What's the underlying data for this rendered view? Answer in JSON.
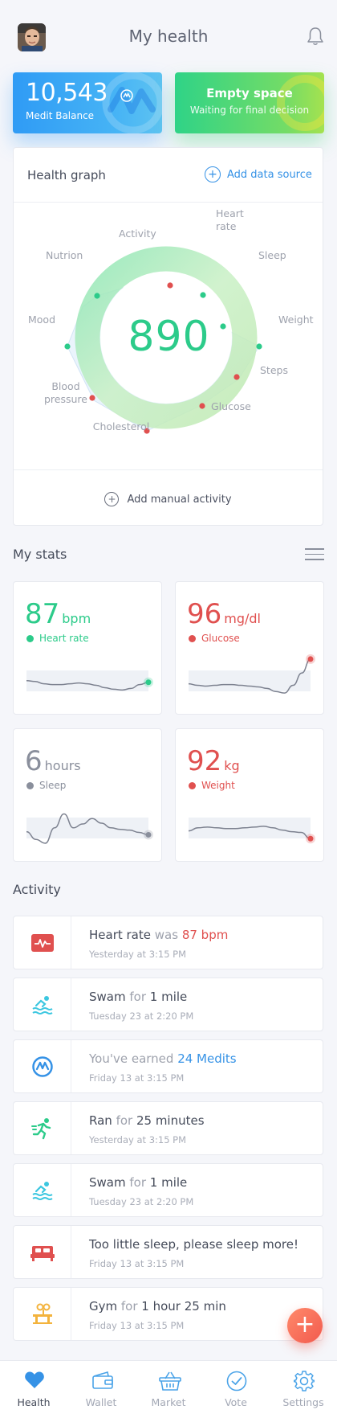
{
  "header": {
    "title": "My health"
  },
  "cards": {
    "balance": {
      "value": "10,543",
      "label": "Medit Balance"
    },
    "empty": {
      "title": "Empty space",
      "subtitle": "Waiting for final decision"
    }
  },
  "health_graph": {
    "title": "Health graph",
    "add_source": "Add data source",
    "score": "890",
    "add_manual": "Add manual activity",
    "axes": [
      {
        "label": "Heart rate",
        "lines": [
          "Heart",
          "rate"
        ],
        "status": "good"
      },
      {
        "label": "Sleep",
        "lines": [
          "Sleep"
        ],
        "status": "bad"
      },
      {
        "label": "Weight",
        "lines": [
          "Weight"
        ],
        "status": "good"
      },
      {
        "label": "Steps",
        "lines": [
          "Steps"
        ],
        "status": "good"
      },
      {
        "label": "Glucose",
        "lines": [
          "Glucose"
        ],
        "status": "good"
      },
      {
        "label": "Cholesterol",
        "lines": [
          "Cholesterol"
        ],
        "status": "bad"
      },
      {
        "label": "Blood pressure",
        "lines": [
          "Blood",
          "pressure"
        ],
        "status": "bad"
      },
      {
        "label": "Mood",
        "lines": [
          "Mood"
        ],
        "status": "bad"
      },
      {
        "label": "Nutrion",
        "lines": [
          "Nutrion"
        ],
        "status": "bad"
      },
      {
        "label": "Activity",
        "lines": [
          "Activity"
        ],
        "status": "good"
      }
    ]
  },
  "stats": {
    "title": "My stats",
    "items": [
      {
        "value": "87",
        "unit": "bpm",
        "label": "Heart rate",
        "color": "#2ccb8a",
        "series": [
          3,
          3.1,
          3.4,
          3.5,
          3.5,
          3.4,
          3.3,
          3.4,
          3.6,
          3.9,
          4.1,
          4.2,
          4.0,
          3.5,
          3.2
        ]
      },
      {
        "value": "96",
        "unit": "mg/dl",
        "label": "Glucose",
        "color": "#e0504f",
        "series": [
          3.4,
          3.6,
          3.7,
          3.6,
          3.5,
          3.5,
          3.6,
          3.7,
          3.8,
          4.0,
          4.4,
          4.6,
          3.6,
          2.0,
          0.2
        ]
      },
      {
        "value": "6",
        "unit": "hours",
        "label": "Sleep",
        "color": "#8a8f9c",
        "series": [
          3.5,
          4.5,
          5.0,
          3.0,
          1.2,
          3.0,
          2.5,
          1.8,
          2.4,
          3.0,
          3.2,
          3.3,
          3.6,
          3.9
        ]
      },
      {
        "value": "92",
        "unit": "kg",
        "label": "Weight",
        "color": "#e0504f",
        "series": [
          3.4,
          3.0,
          2.9,
          3.0,
          3.1,
          3.1,
          3.0,
          2.9,
          2.8,
          3.0,
          3.3,
          3.5,
          3.6,
          4.4
        ]
      }
    ]
  },
  "activity": {
    "title": "Activity",
    "items": [
      {
        "icon": "heart-monitor-icon",
        "parts": [
          [
            "Heart rate",
            "main"
          ],
          [
            " was ",
            "muted"
          ],
          [
            "87 bpm",
            "red"
          ]
        ],
        "time": "Yesterday at 3:15 PM"
      },
      {
        "icon": "swimmer-icon",
        "parts": [
          [
            "Swam",
            "main"
          ],
          [
            " for ",
            "muted"
          ],
          [
            "1 mile",
            "main"
          ]
        ],
        "time": "Tuesday 23 at 2:20 PM"
      },
      {
        "icon": "medit-coin-icon",
        "parts": [
          [
            "You've earned ",
            "muted"
          ],
          [
            "24 Medits",
            "blue"
          ]
        ],
        "time": "Friday 13 at 3:15 PM"
      },
      {
        "icon": "runner-icon",
        "parts": [
          [
            "Ran",
            "main"
          ],
          [
            " for ",
            "muted"
          ],
          [
            "25 minutes",
            "main"
          ]
        ],
        "time": "Yesterday at 3:15 PM"
      },
      {
        "icon": "swimmer-icon",
        "parts": [
          [
            "Swam",
            "main"
          ],
          [
            " for ",
            "muted"
          ],
          [
            "1 mile",
            "main"
          ]
        ],
        "time": "Tuesday 23 at 2:20 PM"
      },
      {
        "icon": "bed-icon",
        "parts": [
          [
            "Too little sleep, please sleep more!",
            "main"
          ]
        ],
        "time": "Friday 13 at 3:15 PM"
      },
      {
        "icon": "dumbbell-icon",
        "parts": [
          [
            "Gym",
            "main"
          ],
          [
            " for ",
            "muted"
          ],
          [
            "1 hour 25 min",
            "main"
          ]
        ],
        "time": "Friday 13 at 3:15 PM"
      }
    ]
  },
  "fab": {
    "label": "+"
  },
  "tabbar": {
    "items": [
      {
        "label": "Health",
        "icon": "heart-icon",
        "active": true
      },
      {
        "label": "Wallet",
        "icon": "wallet-icon",
        "active": false
      },
      {
        "label": "Market",
        "icon": "basket-icon",
        "active": false
      },
      {
        "label": "Vote",
        "icon": "check-circle-icon",
        "active": false
      },
      {
        "label": "Settings",
        "icon": "gear-icon",
        "active": false
      }
    ]
  },
  "colors": {
    "green": "#2ccb8a",
    "red": "#e0504f",
    "blue": "#3592e6",
    "text": "#454b5a",
    "muted": "#9ea2ad"
  }
}
